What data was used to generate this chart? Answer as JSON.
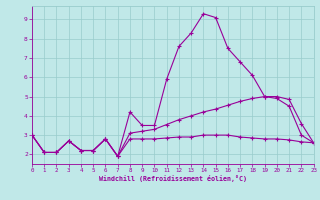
{
  "xlabel": "Windchill (Refroidissement éolien,°C)",
  "xlim": [
    0,
    23
  ],
  "ylim": [
    1.5,
    9.7
  ],
  "xticks": [
    0,
    1,
    2,
    3,
    4,
    5,
    6,
    7,
    8,
    9,
    10,
    11,
    12,
    13,
    14,
    15,
    16,
    17,
    18,
    19,
    20,
    21,
    22,
    23
  ],
  "yticks": [
    2,
    3,
    4,
    5,
    6,
    7,
    8,
    9
  ],
  "bg_color": "#c0e8e8",
  "grid_color": "#99cccc",
  "line_color": "#990099",
  "line1_x": [
    0,
    1,
    2,
    3,
    4,
    5,
    6,
    7,
    8,
    9,
    10,
    11,
    12,
    13,
    14,
    15,
    16,
    17,
    18,
    19,
    20,
    21,
    22,
    23
  ],
  "line1_y": [
    3.0,
    2.1,
    2.1,
    2.7,
    2.2,
    2.2,
    2.8,
    1.9,
    4.2,
    3.5,
    3.5,
    5.9,
    7.6,
    8.3,
    9.3,
    9.1,
    7.5,
    6.8,
    6.1,
    5.0,
    4.9,
    4.5,
    3.0,
    2.6
  ],
  "line2_x": [
    0,
    1,
    2,
    3,
    4,
    5,
    6,
    7,
    8,
    9,
    10,
    11,
    12,
    13,
    14,
    15,
    16,
    17,
    18,
    19,
    20,
    21,
    22,
    23
  ],
  "line2_y": [
    3.0,
    2.1,
    2.1,
    2.7,
    2.2,
    2.2,
    2.8,
    1.9,
    3.1,
    3.2,
    3.3,
    3.55,
    3.8,
    4.0,
    4.2,
    4.35,
    4.55,
    4.75,
    4.9,
    5.0,
    5.0,
    4.85,
    3.6,
    2.6
  ],
  "line3_x": [
    0,
    1,
    2,
    3,
    4,
    5,
    6,
    7,
    8,
    9,
    10,
    11,
    12,
    13,
    14,
    15,
    16,
    17,
    18,
    19,
    20,
    21,
    22,
    23
  ],
  "line3_y": [
    3.0,
    2.1,
    2.1,
    2.7,
    2.2,
    2.2,
    2.8,
    1.9,
    2.8,
    2.8,
    2.8,
    2.85,
    2.9,
    2.9,
    3.0,
    3.0,
    3.0,
    2.9,
    2.85,
    2.8,
    2.8,
    2.75,
    2.65,
    2.6
  ]
}
